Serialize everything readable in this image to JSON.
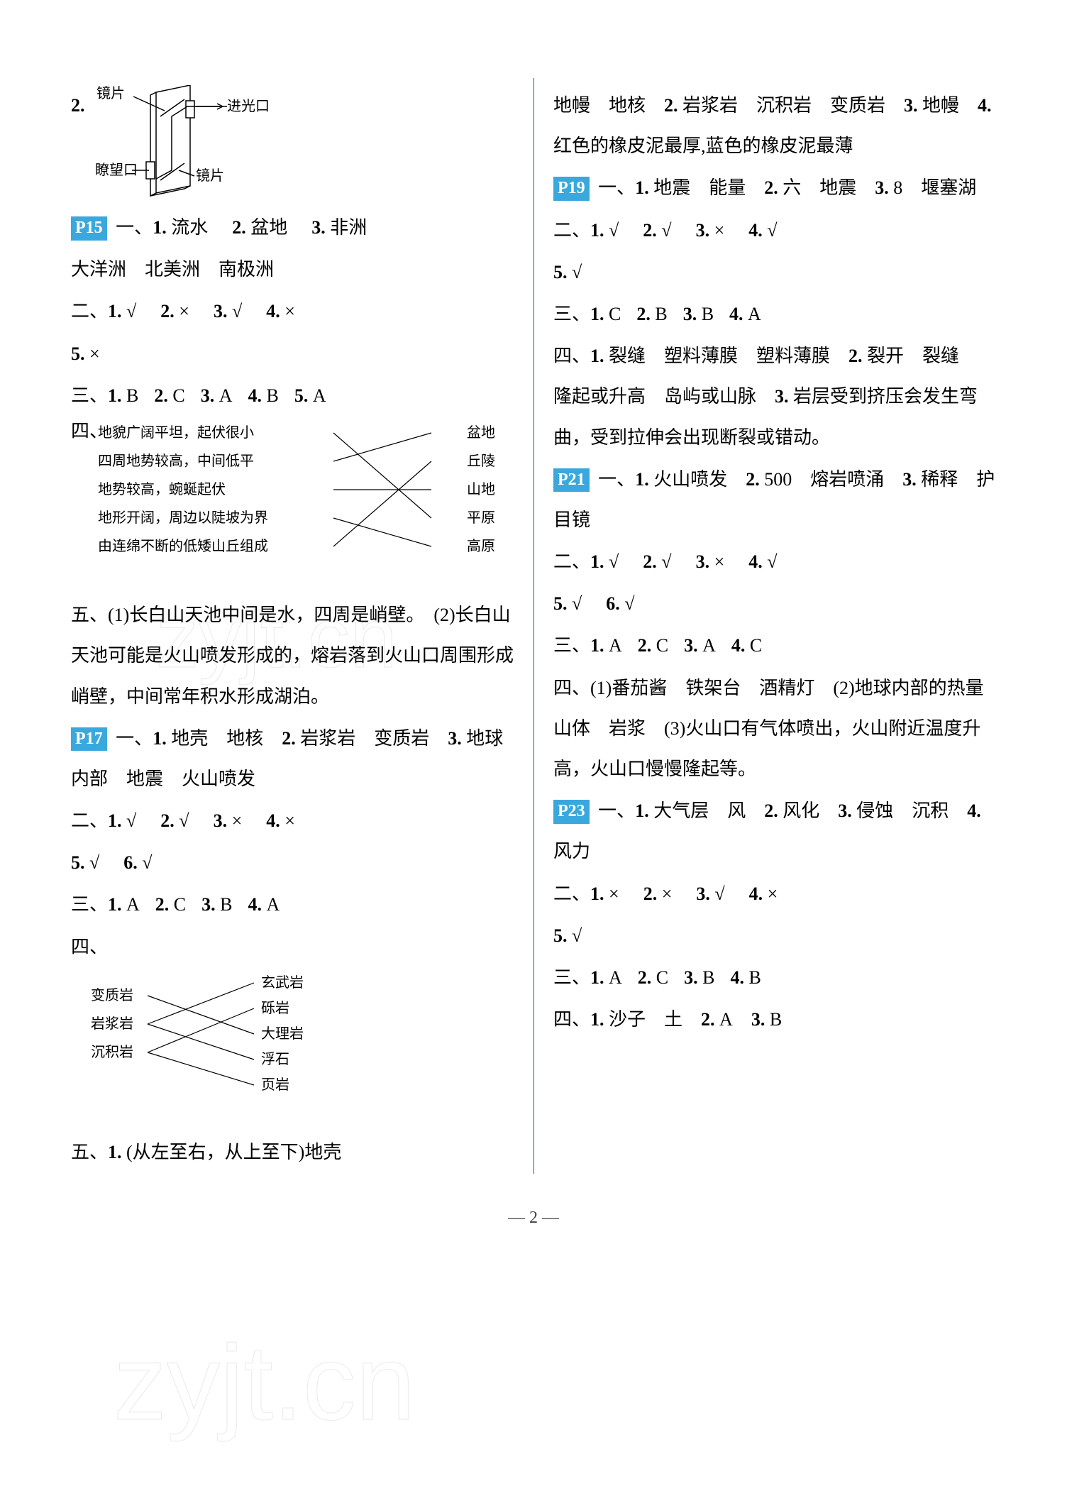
{
  "left": {
    "q2": {
      "num": "2.",
      "lens": "镜片",
      "inlet": "进光口",
      "viewport": "瞭望口"
    },
    "p15": {
      "tag": "P15",
      "s1_prefix": "一、",
      "s1": [
        {
          "n": "1.",
          "t": "流水"
        },
        {
          "n": "2.",
          "t": "盆地"
        },
        {
          "n": "3.",
          "t": "非洲"
        }
      ],
      "s1_cont": "大洋洲　北美洲　南极洲",
      "s2_prefix": "二、",
      "s2": [
        {
          "n": "1.",
          "t": "√"
        },
        {
          "n": "2.",
          "t": "×"
        },
        {
          "n": "3.",
          "t": "√"
        },
        {
          "n": "4.",
          "t": "×"
        }
      ],
      "s2_line2": [
        {
          "n": "5.",
          "t": "×"
        }
      ],
      "s3_prefix": "三、",
      "s3": [
        {
          "n": "1.",
          "t": "B"
        },
        {
          "n": "2.",
          "t": "C"
        },
        {
          "n": "3.",
          "t": "A"
        },
        {
          "n": "4.",
          "t": "B"
        },
        {
          "n": "5.",
          "t": "A"
        }
      ],
      "s4_prefix": "四、",
      "match_left": [
        "地貌广阔平坦，起伏很小",
        "四周地势较高，中间低平",
        "地势较高，蜿蜒起伏",
        "地形开阔，周边以陡坡为界",
        "由连绵不断的低矮山丘组成"
      ],
      "match_right": [
        "盆地",
        "丘陵",
        "山地",
        "平原",
        "高原"
      ],
      "s5_prefix": "五、",
      "s5_text": "(1)长白山天池中间是水，四周是峭壁。　(2)长白山天池可能是火山喷发形成的，熔岩落到火山口周围形成峭壁，中间常年积水形成湖泊。"
    },
    "p17": {
      "tag": "P17",
      "s1_prefix": "一、",
      "s1_line": "1. 地壳　地核　2. 岩浆岩　变质岩　3. 地球内部　地震　火山喷发",
      "s2_prefix": "二、",
      "s2": [
        {
          "n": "1.",
          "t": "√"
        },
        {
          "n": "2.",
          "t": "√"
        },
        {
          "n": "3.",
          "t": "×"
        },
        {
          "n": "4.",
          "t": "×"
        }
      ],
      "s2_line2": [
        {
          "n": "5.",
          "t": "√"
        },
        {
          "n": "6.",
          "t": "√"
        }
      ],
      "s3_prefix": "三、",
      "s3": [
        {
          "n": "1.",
          "t": "A"
        },
        {
          "n": "2.",
          "t": "C"
        },
        {
          "n": "3.",
          "t": "B"
        },
        {
          "n": "4.",
          "t": "A"
        }
      ],
      "s4_prefix": "四、",
      "rock_left": [
        "变质岩",
        "岩浆岩",
        "沉积岩"
      ],
      "rock_right": [
        "玄武岩",
        "砾岩",
        "大理岩",
        "浮石",
        "页岩"
      ],
      "s5_prefix": "五、",
      "s5_text": "1. (从左至右，从上至下)地壳"
    }
  },
  "right": {
    "cont": "地幔　地核　2. 岩浆岩　沉积岩　变质岩　3. 地幔　4. 红色的橡皮泥最厚,蓝色的橡皮泥最薄",
    "p19": {
      "tag": "P19",
      "s1_prefix": "一、",
      "s1_line": "1. 地震　能量　2. 六　地震　3. 8　堰塞湖",
      "s2_prefix": "二、",
      "s2": [
        {
          "n": "1.",
          "t": "√"
        },
        {
          "n": "2.",
          "t": "√"
        },
        {
          "n": "3.",
          "t": "×"
        },
        {
          "n": "4.",
          "t": "√"
        }
      ],
      "s2_line2": [
        {
          "n": "5.",
          "t": "√"
        }
      ],
      "s3_prefix": "三、",
      "s3": [
        {
          "n": "1.",
          "t": "C"
        },
        {
          "n": "2.",
          "t": "B"
        },
        {
          "n": "3.",
          "t": "B"
        },
        {
          "n": "4.",
          "t": "A"
        }
      ],
      "s4_prefix": "四、",
      "s4_text": "1. 裂缝　塑料薄膜　塑料薄膜　2. 裂开　裂缝　隆起或升高　岛屿或山脉　3. 岩层受到挤压会发生弯曲，受到拉伸会出现断裂或错动。"
    },
    "p21": {
      "tag": "P21",
      "s1_prefix": "一、",
      "s1_line": "1. 火山喷发　2. 500　熔岩喷涌　3. 稀释　护目镜",
      "s2_prefix": "二、",
      "s2": [
        {
          "n": "1.",
          "t": "√"
        },
        {
          "n": "2.",
          "t": "√"
        },
        {
          "n": "3.",
          "t": "×"
        },
        {
          "n": "4.",
          "t": "√"
        }
      ],
      "s2_line2": [
        {
          "n": "5.",
          "t": "√"
        },
        {
          "n": "6.",
          "t": "√"
        }
      ],
      "s3_prefix": "三、",
      "s3": [
        {
          "n": "1.",
          "t": "A"
        },
        {
          "n": "2.",
          "t": "C"
        },
        {
          "n": "3.",
          "t": "A"
        },
        {
          "n": "4.",
          "t": "C"
        }
      ],
      "s4_prefix": "四、",
      "s4_text": "(1)番茄酱　铁架台　酒精灯　(2)地球内部的热量　山体　岩浆　(3)火山口有气体喷出，火山附近温度升高，火山口慢慢隆起等。"
    },
    "p23": {
      "tag": "P23",
      "s1_prefix": "一、",
      "s1_line": "1. 大气层　风　2. 风化　3. 侵蚀　沉积　4. 风力",
      "s2_prefix": "二、",
      "s2": [
        {
          "n": "1.",
          "t": "×"
        },
        {
          "n": "2.",
          "t": "×"
        },
        {
          "n": "3.",
          "t": "√"
        },
        {
          "n": "4.",
          "t": "×"
        }
      ],
      "s2_line2": [
        {
          "n": "5.",
          "t": "√"
        }
      ],
      "s3_prefix": "三、",
      "s3": [
        {
          "n": "1.",
          "t": "A"
        },
        {
          "n": "2.",
          "t": "C"
        },
        {
          "n": "3.",
          "t": "B"
        },
        {
          "n": "4.",
          "t": "B"
        }
      ],
      "s4_prefix": "四、",
      "s4_line": "1. 沙子　土　2. A　3. B"
    }
  },
  "watermarks": {
    "w1": "zyjt.cn",
    "w2": "zyjt.cn"
  },
  "page_number": "2",
  "diagrams": {
    "q2_box": {
      "stroke": "#000000",
      "fill": "#ffffff"
    },
    "match1": {
      "edges": [
        [
          0,
          3
        ],
        [
          1,
          0
        ],
        [
          2,
          2
        ],
        [
          3,
          4
        ],
        [
          4,
          1
        ]
      ],
      "font_size": 20,
      "stroke": "#000000"
    },
    "rock": {
      "edges": [
        [
          0,
          2
        ],
        [
          1,
          0
        ],
        [
          1,
          3
        ],
        [
          2,
          1
        ],
        [
          2,
          4
        ]
      ],
      "font_size": 20,
      "stroke": "#000000"
    }
  },
  "colors": {
    "tag_bg": "#3aa8dd",
    "tag_fg": "#ffffff",
    "divider": "#1a5a9a",
    "text": "#000000"
  }
}
